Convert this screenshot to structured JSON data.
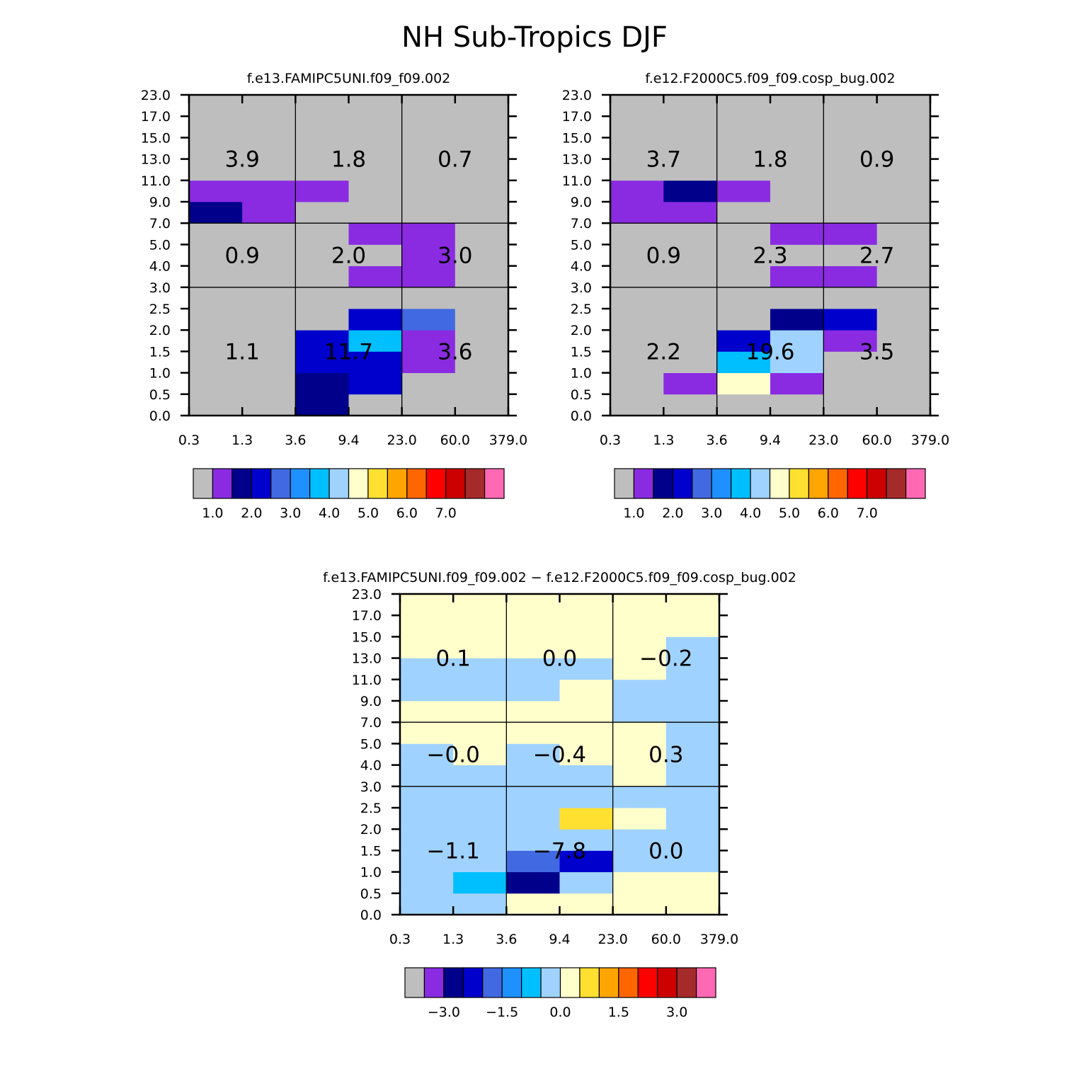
{
  "chart_data": {
    "type": "heatmap",
    "title": "NH Sub-Tropics DJF",
    "x_tick_labels": [
      "0.3",
      "1.3",
      "3.6",
      "9.4",
      "23.0",
      "60.0",
      "379.0"
    ],
    "y_tick_labels": [
      "0.0",
      "0.5",
      "1.0",
      "1.5",
      "2.0",
      "2.5",
      "3.0",
      "4.0",
      "5.0",
      "7.0",
      "9.0",
      "11.0",
      "13.0",
      "15.0",
      "17.0",
      "23.0"
    ],
    "colors": {
      "palette": [
        "#bebebe",
        "#8a2be2",
        "#00008b",
        "#0000cd",
        "#4169e1",
        "#1e90ff",
        "#00bfff",
        "#a0d2ff",
        "#ffffcc",
        "#ffe030",
        "#ffa500",
        "#ff6600",
        "#ff0000",
        "#cd0000",
        "#a52a2a",
        "#ff69b4"
      ],
      "grid": "#000000",
      "text": "#000000"
    },
    "panels": [
      {
        "title": "f.e13.FAMIPC5UNI.f09_f09.002",
        "colorbar_labels": [
          "1.0",
          "2.0",
          "3.0",
          "4.0",
          "5.0",
          "6.0",
          "7.0"
        ],
        "totals": [
          "1.1",
          "11.7",
          "3.6",
          "0.9",
          "2.0",
          "3.0",
          "3.9",
          "1.8",
          "0.7"
        ],
        "grid": [
          [
            0,
            0,
            2,
            0,
            0,
            0
          ],
          [
            0,
            0,
            2,
            3,
            0,
            0
          ],
          [
            0,
            0,
            3,
            3,
            1,
            0
          ],
          [
            0,
            0,
            3,
            6,
            1,
            0
          ],
          [
            0,
            0,
            0,
            3,
            4,
            0
          ],
          [
            0,
            0,
            0,
            0,
            0,
            0
          ],
          [
            0,
            0,
            0,
            1,
            1,
            0
          ],
          [
            0,
            0,
            0,
            0,
            1,
            0
          ],
          [
            0,
            0,
            0,
            1,
            1,
            0
          ],
          [
            2,
            1,
            0,
            0,
            0,
            0
          ],
          [
            1,
            1,
            1,
            0,
            0,
            0
          ],
          [
            0,
            0,
            0,
            0,
            0,
            0
          ],
          [
            0,
            0,
            0,
            0,
            0,
            0
          ],
          [
            0,
            0,
            0,
            0,
            0,
            0
          ],
          [
            0,
            0,
            0,
            0,
            0,
            0
          ]
        ]
      },
      {
        "title": "f.e12.F2000C5.f09_f09.cosp_bug.002",
        "colorbar_labels": [
          "1.0",
          "2.0",
          "3.0",
          "4.0",
          "5.0",
          "6.0",
          "7.0"
        ],
        "totals": [
          "2.2",
          "19.6",
          "3.5",
          "0.9",
          "2.3",
          "2.7",
          "3.7",
          "1.8",
          "0.9"
        ],
        "grid": [
          [
            0,
            0,
            0,
            0,
            0,
            0
          ],
          [
            0,
            1,
            8,
            1,
            0,
            0
          ],
          [
            0,
            0,
            6,
            7,
            0,
            0
          ],
          [
            0,
            0,
            3,
            7,
            1,
            0
          ],
          [
            0,
            0,
            0,
            2,
            3,
            0
          ],
          [
            0,
            0,
            0,
            0,
            0,
            0
          ],
          [
            0,
            0,
            0,
            1,
            1,
            0
          ],
          [
            0,
            0,
            0,
            0,
            0,
            0
          ],
          [
            0,
            0,
            0,
            1,
            1,
            0
          ],
          [
            1,
            1,
            0,
            0,
            0,
            0
          ],
          [
            1,
            2,
            1,
            0,
            0,
            0
          ],
          [
            0,
            0,
            0,
            0,
            0,
            0
          ],
          [
            0,
            0,
            0,
            0,
            0,
            0
          ],
          [
            0,
            0,
            0,
            0,
            0,
            0
          ],
          [
            0,
            0,
            0,
            0,
            0,
            0
          ]
        ]
      },
      {
        "title": "f.e13.FAMIPC5UNI.f09_f09.002 − f.e12.F2000C5.f09_f09.cosp_bug.002",
        "colorbar_labels": [
          "−3.0",
          "−1.5",
          "0.0",
          "1.5",
          "3.0"
        ],
        "totals": [
          "−1.1",
          "−7.8",
          "0.0",
          "−0.0",
          "−0.4",
          "0.3",
          "0.1",
          "0.0",
          "−0.2"
        ],
        "grid": [
          [
            7,
            7,
            8,
            8,
            8,
            8
          ],
          [
            7,
            6,
            2,
            7,
            8,
            8
          ],
          [
            7,
            7,
            4,
            3,
            7,
            7
          ],
          [
            7,
            7,
            7,
            7,
            7,
            7
          ],
          [
            7,
            7,
            7,
            9,
            8,
            7
          ],
          [
            7,
            7,
            7,
            7,
            7,
            7
          ],
          [
            7,
            7,
            7,
            7,
            8,
            7
          ],
          [
            7,
            8,
            7,
            8,
            8,
            7
          ],
          [
            8,
            8,
            8,
            8,
            8,
            7
          ],
          [
            8,
            8,
            8,
            8,
            7,
            7
          ],
          [
            7,
            7,
            7,
            8,
            7,
            7
          ],
          [
            7,
            7,
            7,
            7,
            8,
            7
          ],
          [
            8,
            8,
            8,
            8,
            8,
            7
          ],
          [
            8,
            8,
            8,
            8,
            8,
            8
          ],
          [
            8,
            8,
            8,
            8,
            8,
            8
          ]
        ]
      }
    ]
  }
}
